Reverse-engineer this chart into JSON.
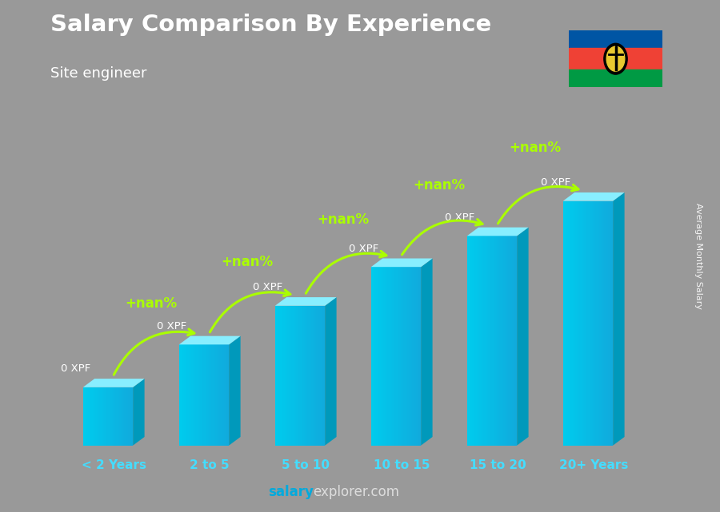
{
  "title": "Salary Comparison By Experience",
  "subtitle": "Site engineer",
  "xlabel_categories": [
    "< 2 Years",
    "2 to 5",
    "5 to 10",
    "10 to 15",
    "15 to 20",
    "20+ Years"
  ],
  "bar_labels": [
    "0 XPF",
    "0 XPF",
    "0 XPF",
    "0 XPF",
    "0 XPF",
    "0 XPF"
  ],
  "increase_labels": [
    "+nan%",
    "+nan%",
    "+nan%",
    "+nan%",
    "+nan%"
  ],
  "bar_face_color": "#00ccee",
  "bar_top_color": "#88eeff",
  "bar_side_color": "#0099bb",
  "background_color": "#999999",
  "title_color": "#ffffff",
  "subtitle_color": "#ffffff",
  "label_color": "#ffffff",
  "increase_color": "#aaff00",
  "footer_salary_color": "#00aadd",
  "footer_rest_color": "#dddddd",
  "watermark_text": "Average Monthly Salary",
  "bar_heights": [
    1.5,
    2.6,
    3.6,
    4.6,
    5.4,
    6.3
  ],
  "flag_blue": "#0055a4",
  "flag_red": "#ef4135",
  "flag_green": "#009a44"
}
